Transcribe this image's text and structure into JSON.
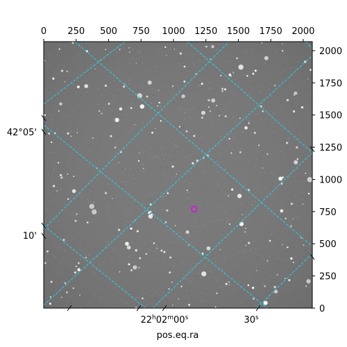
{
  "chart_data": {
    "type": "image",
    "title": "",
    "xlabel": "pos.eq.ra",
    "ylabel": "",
    "pixel_axes": {
      "x": {
        "range": [
          0,
          2070
        ],
        "ticks": [
          0,
          250,
          500,
          750,
          1000,
          1250,
          1500,
          1750,
          2000
        ]
      },
      "y": {
        "range": [
          0,
          2070
        ],
        "ticks": [
          0,
          250,
          500,
          750,
          1000,
          1250,
          1500,
          1750,
          2000
        ]
      }
    },
    "wcs_axes": {
      "ra_ticks": [
        {
          "label_main": "22",
          "label_h": "h",
          "label_m_num": "02",
          "label_m": "m",
          "label_s_num": "00",
          "label_s": "s",
          "px": 930
        },
        {
          "label_main": "30",
          "label_s": "s",
          "px": 1600
        }
      ],
      "dec_ticks": [
        {
          "label": "42°05'",
          "py": 1370
        },
        {
          "label": "10'",
          "py": 565
        }
      ]
    },
    "grid": {
      "on": true,
      "color": "#22d3ee"
    },
    "background_color": "#7a7a7a",
    "marker": {
      "x": 1160,
      "y": 770,
      "color": "#cc22cc"
    }
  }
}
